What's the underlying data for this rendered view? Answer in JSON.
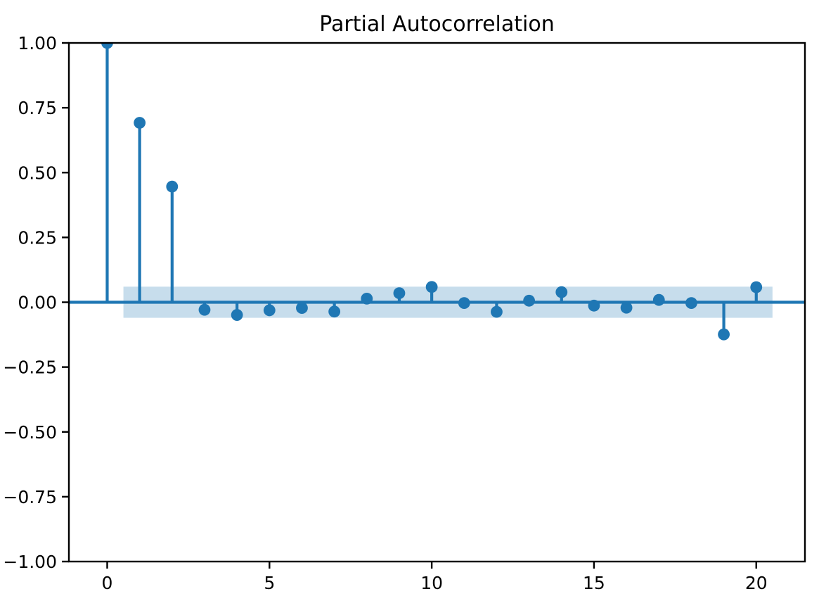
{
  "chart_data": {
    "type": "stem",
    "title": "Partial Autocorrelation",
    "xlabel": "",
    "ylabel": "",
    "x": [
      0,
      1,
      2,
      3,
      4,
      5,
      6,
      7,
      8,
      9,
      10,
      11,
      12,
      13,
      14,
      15,
      16,
      17,
      18,
      19,
      20
    ],
    "values": [
      1.0,
      0.692,
      0.446,
      -0.029,
      -0.049,
      -0.031,
      -0.022,
      -0.036,
      0.014,
      0.035,
      0.059,
      -0.003,
      -0.037,
      0.006,
      0.039,
      -0.013,
      -0.021,
      0.009,
      -0.003,
      -0.124,
      0.058
    ],
    "xlim": [
      -1.18,
      21.5
    ],
    "ylim": [
      -1.0,
      1.0
    ],
    "xticks": [
      0,
      5,
      10,
      15,
      20
    ],
    "xtick_labels": [
      "0",
      "5",
      "10",
      "15",
      "20"
    ],
    "yticks": [
      1.0,
      0.75,
      0.5,
      0.25,
      0.0,
      -0.25,
      -0.5,
      -0.75,
      -1.0
    ],
    "ytick_labels": [
      "1.00",
      "0.75",
      "0.50",
      "0.25",
      "0.00",
      "−0.25",
      "−0.50",
      "−0.75",
      "−1.00"
    ],
    "confidence_band": {
      "x_start": 0.5,
      "x_end": 20.5,
      "lower": -0.06,
      "upper": 0.06
    },
    "baseline": 0.0,
    "grid": false,
    "legend": "none",
    "marker": "circle",
    "colors": {
      "series": "#1f77b4",
      "confidence_band": "rgba(31,119,180,0.25)",
      "axes": "#000000",
      "text": "#000000",
      "background": "#ffffff"
    }
  }
}
